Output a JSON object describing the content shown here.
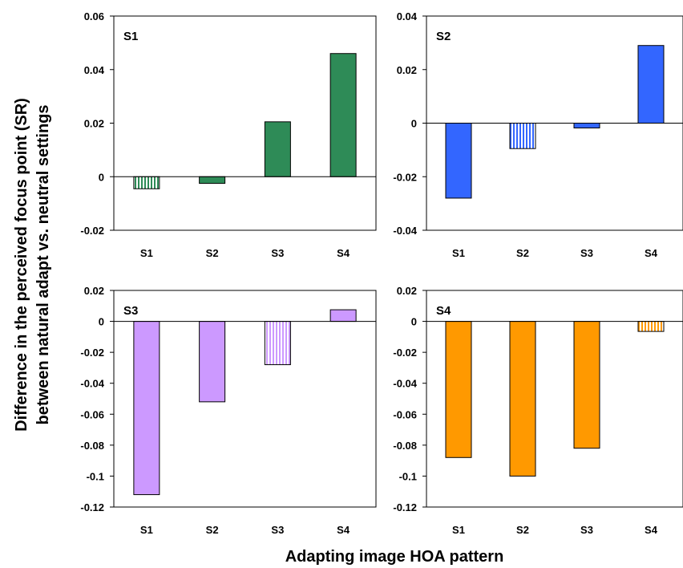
{
  "colors": {
    "S1": "#2e8b57",
    "S2": "#3366ff",
    "S3": "#cc99ff",
    "S4": "#ff9900"
  },
  "chart_data": {
    "type": "bar",
    "xlabel": "Adapting image HOA pattern",
    "ylabel_line1": "Difference in the perceived focus point (SR)",
    "ylabel_line2": "between natural adapt vs. neutral settings",
    "panels": [
      {
        "label": "S1",
        "categories": [
          "S1",
          "S2",
          "S3",
          "S4"
        ],
        "values": [
          -0.0045,
          -0.0025,
          0.0205,
          0.046
        ],
        "hatched": [
          true,
          false,
          false,
          false
        ],
        "ylim": [
          -0.02,
          0.06
        ],
        "yticks": [
          "0.06",
          "0.04",
          "0.02",
          "0",
          "-0.02"
        ],
        "ytick_values": [
          0.06,
          0.04,
          0.02,
          0,
          -0.02
        ]
      },
      {
        "label": "S2",
        "categories": [
          "S1",
          "S2",
          "S3",
          "S4"
        ],
        "values": [
          -0.028,
          -0.0095,
          -0.0018,
          0.029
        ],
        "hatched": [
          false,
          true,
          false,
          false
        ],
        "ylim": [
          -0.04,
          0.04
        ],
        "yticks": [
          "0.04",
          "0.02",
          "0",
          "-0.02",
          "-0.04"
        ],
        "ytick_values": [
          0.04,
          0.02,
          0,
          -0.02,
          -0.04
        ]
      },
      {
        "label": "S3",
        "categories": [
          "S1",
          "S2",
          "S3",
          "S4"
        ],
        "values": [
          -0.112,
          -0.052,
          -0.028,
          0.0075
        ],
        "hatched": [
          false,
          false,
          true,
          false
        ],
        "ylim": [
          -0.12,
          0.02
        ],
        "yticks": [
          "0.02",
          "0",
          "-0.02",
          "-0.04",
          "-0.06",
          "-0.08",
          "-0.1",
          "-0.12"
        ],
        "ytick_values": [
          0.02,
          0,
          -0.02,
          -0.04,
          -0.06,
          -0.08,
          -0.1,
          -0.12
        ]
      },
      {
        "label": "S4",
        "categories": [
          "S1",
          "S2",
          "S3",
          "S4"
        ],
        "values": [
          -0.088,
          -0.1,
          -0.082,
          -0.0065
        ],
        "hatched": [
          false,
          false,
          false,
          true
        ],
        "ylim": [
          -0.12,
          0.02
        ],
        "yticks": [
          "0.02",
          "0",
          "-0.02",
          "-0.04",
          "-0.06",
          "-0.08",
          "-0.1",
          "-0.12"
        ],
        "ytick_values": [
          0.02,
          0,
          -0.02,
          -0.04,
          -0.06,
          -0.08,
          -0.1,
          -0.12
        ]
      }
    ]
  }
}
